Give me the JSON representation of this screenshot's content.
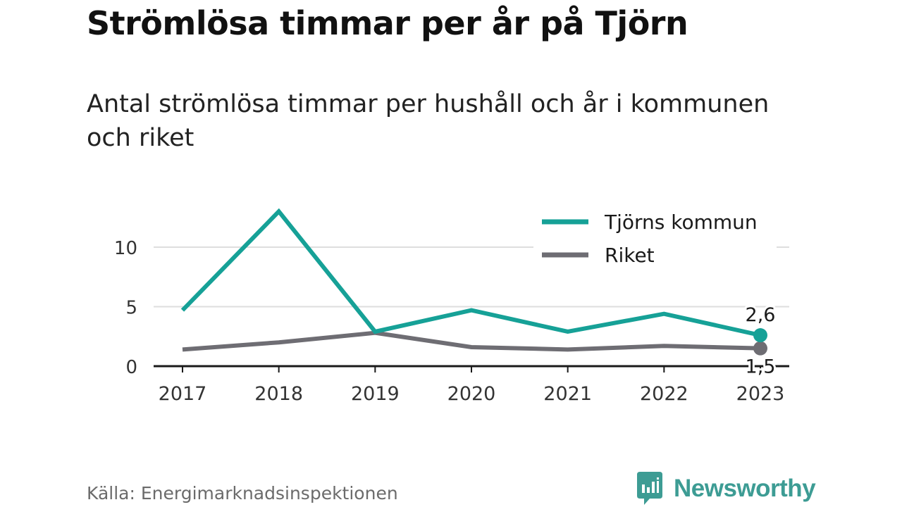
{
  "title": "Strömlösa timmar per år på Tjörn",
  "subtitle": "Antal strömlösa timmar per hushåll och år i kommunen och riket",
  "source": "Källa: Energimarknadsinspektionen",
  "brand": {
    "name": "Newsworthy",
    "icon": "newsworthy-logo-icon",
    "color": "#3d9c94"
  },
  "chart_data": {
    "type": "line",
    "x": [
      "2017",
      "2018",
      "2019",
      "2020",
      "2021",
      "2022",
      "2023"
    ],
    "series": [
      {
        "name": "Tjörns kommun",
        "color": "#16a197",
        "values": [
          4.7,
          13.0,
          2.9,
          4.7,
          2.9,
          4.4,
          2.6
        ],
        "end_label": "2,6"
      },
      {
        "name": "Riket",
        "color": "#6e6d73",
        "values": [
          1.4,
          2.0,
          2.8,
          1.6,
          1.4,
          1.7,
          1.5
        ],
        "end_label": "1,5"
      }
    ],
    "yticks": [
      0,
      5,
      10
    ],
    "ytick_labels": [
      "0",
      "5",
      "10"
    ],
    "ylim": [
      0,
      13
    ],
    "grid": true,
    "legend": "top-right",
    "xlabel": "",
    "ylabel": ""
  }
}
